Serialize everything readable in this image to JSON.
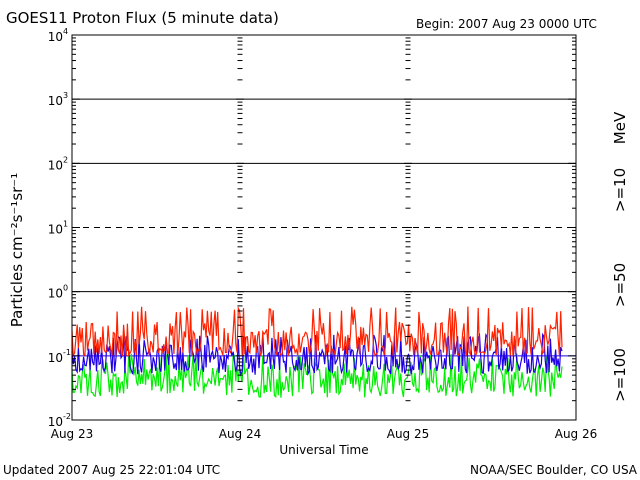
{
  "header": {
    "title": "GOES11 Proton Flux (5 minute data)",
    "begin": "Begin: 2007 Aug 23 0000 UTC"
  },
  "footer": {
    "updated": "Updated 2007 Aug 25 22:01:04 UTC",
    "credit": "NOAA/SEC Boulder, CO USA"
  },
  "legend": {
    "unit": "MeV",
    "items": [
      {
        "label": ">=10",
        "color": "#ff2200"
      },
      {
        "label": ">=50",
        "color": "#1f00e6"
      },
      {
        "label": ">=100",
        "color": "#00ee00"
      }
    ]
  },
  "chart_data": {
    "type": "line",
    "title": "GOES11 Proton Flux (5 minute data)",
    "xlabel": "Universal Time",
    "ylabel": "Particles cm⁻²s⁻¹sr⁻¹",
    "yscale": "log",
    "ylim": [
      0.01,
      10000
    ],
    "xlim": [
      "Aug 23",
      "Aug 26"
    ],
    "x_ticks": [
      "Aug 23",
      "Aug 24",
      "Aug 25",
      "Aug 26"
    ],
    "y_ticks": [
      {
        "base": "10",
        "exp": "-2",
        "value": 0.01
      },
      {
        "base": "10",
        "exp": "-1",
        "value": 0.1
      },
      {
        "base": "10",
        "exp": "0",
        "value": 1
      },
      {
        "base": "10",
        "exp": "1",
        "value": 10
      },
      {
        "base": "10",
        "exp": "2",
        "value": 100
      },
      {
        "base": "10",
        "exp": "3",
        "value": 1000
      },
      {
        "base": "10",
        "exp": "4",
        "value": 10000
      }
    ],
    "reference_lines": [
      {
        "value": 1000,
        "style": "solid"
      },
      {
        "value": 100,
        "style": "solid"
      },
      {
        "value": 10,
        "style": "dashed"
      },
      {
        "value": 1,
        "style": "solid"
      },
      {
        "value": 0.1,
        "style": "solid",
        "color": "#1f00e6"
      }
    ],
    "data_end": "2007 Aug 25 22:00",
    "series": [
      {
        "name": ">=10",
        "color": "#ff2200",
        "baseline": 0.18,
        "range": [
          0.1,
          0.6
        ]
      },
      {
        "name": ">=50",
        "color": "#1f00e6",
        "baseline": 0.09,
        "range": [
          0.05,
          0.22
        ]
      },
      {
        "name": ">=100",
        "color": "#00ee00",
        "baseline": 0.045,
        "range": [
          0.022,
          0.11
        ]
      }
    ]
  }
}
